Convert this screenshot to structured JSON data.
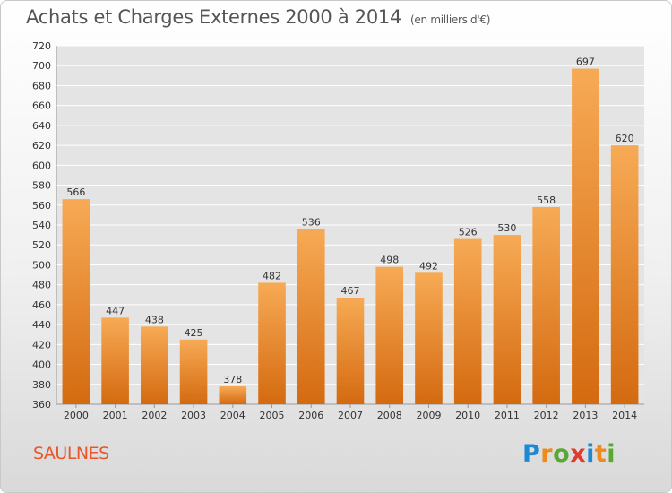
{
  "header": {
    "title": "Achats et Charges Externes 2000 à 2014",
    "unit": "(en milliers d'€)"
  },
  "footer": {
    "commune": "SAULNES",
    "logo": {
      "letters": [
        "P",
        "r",
        "o",
        "x",
        "i",
        "t",
        "i"
      ],
      "colors": [
        "#1e88d2",
        "#f08a1c",
        "#58a832",
        "#e23a2c",
        "#1e88d2",
        "#f08a1c",
        "#58a832"
      ]
    }
  },
  "colors": {
    "bar_top": "#f7aa55",
    "bar_bottom": "#d46a10",
    "grid": "#ffffff",
    "axis_text": "#333333"
  },
  "chart_data": {
    "type": "bar",
    "categories": [
      "2000",
      "2001",
      "2002",
      "2003",
      "2004",
      "2005",
      "2006",
      "2007",
      "2008",
      "2009",
      "2010",
      "2011",
      "2012",
      "2013",
      "2014"
    ],
    "values": [
      566,
      447,
      438,
      425,
      378,
      482,
      536,
      467,
      498,
      492,
      526,
      530,
      558,
      697,
      620
    ],
    "title": "Achats et Charges Externes 2000 à 2014",
    "ylim": [
      360,
      720
    ],
    "yticks": [
      360,
      380,
      400,
      420,
      440,
      460,
      480,
      500,
      520,
      540,
      560,
      580,
      600,
      620,
      640,
      660,
      680,
      700,
      720
    ],
    "grid": true,
    "data_labels": true
  }
}
